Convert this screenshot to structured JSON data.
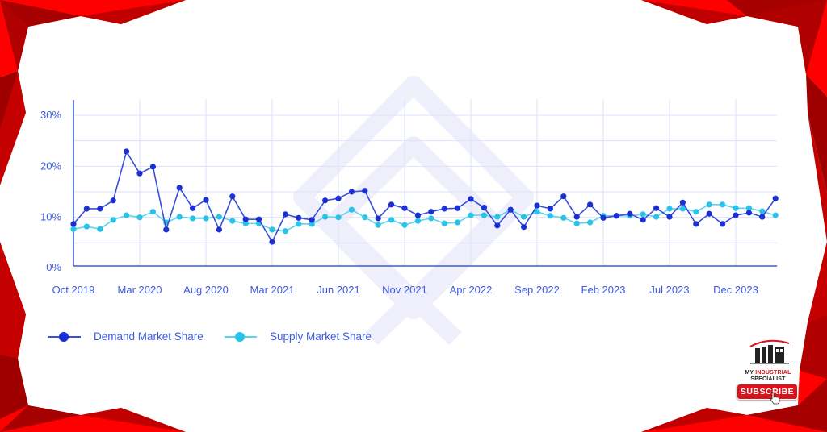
{
  "chart_data": {
    "type": "line",
    "title": "",
    "xlabel": "",
    "ylabel": "",
    "ylim": [
      0,
      30
    ],
    "y_ticks": [
      "0%",
      "10%",
      "20%",
      "30%"
    ],
    "x_tick_labels": [
      "Oct 2019",
      "Mar 2020",
      "Aug 2020",
      "Mar 2021",
      "Jun 2021",
      "Nov 2021",
      "Apr 2022",
      "Sep 2022",
      "Feb 2023",
      "Jul 2023",
      "Dec 2023"
    ],
    "x_tick_every": 5,
    "grid": true,
    "legend_position": "bottom-left",
    "series": [
      {
        "name": "Demand Market Share",
        "color": "#1a2fd6",
        "values": [
          8.7,
          11.7,
          11.7,
          13.3,
          22.9,
          18.6,
          19.9,
          7.6,
          15.8,
          11.8,
          13.4,
          7.6,
          14.1,
          9.6,
          9.6,
          5.2,
          10.6,
          9.9,
          9.5,
          13.3,
          13.7,
          15.0,
          15.2,
          9.8,
          12.5,
          11.8,
          10.4,
          11.1,
          11.7,
          11.8,
          13.6,
          11.9,
          8.4,
          11.5,
          8.1,
          12.3,
          11.7,
          14.1,
          10.1,
          12.5,
          9.9,
          10.3,
          10.7,
          9.5,
          11.8,
          10.1,
          12.9,
          8.7,
          10.7,
          8.7,
          10.4,
          10.9,
          10.1,
          13.7
        ]
      },
      {
        "name": "Supply Market Share",
        "color": "#27c3e8",
        "values": [
          7.7,
          8.2,
          7.7,
          9.5,
          10.4,
          10.0,
          11.1,
          9.0,
          10.1,
          9.8,
          9.8,
          10.1,
          9.3,
          8.8,
          8.8,
          7.6,
          7.3,
          8.7,
          8.7,
          10.1,
          10.0,
          11.5,
          10.0,
          8.5,
          9.5,
          8.5,
          9.3,
          9.8,
          8.8,
          9.0,
          10.4,
          10.4,
          10.1,
          11.5,
          10.1,
          11.1,
          10.3,
          9.9,
          8.8,
          9.0,
          10.3,
          10.3,
          10.3,
          10.6,
          10.1,
          11.7,
          11.7,
          11.1,
          12.5,
          12.5,
          11.8,
          11.8,
          11.2,
          10.4
        ]
      }
    ]
  },
  "legend": {
    "demand_label": "Demand Market Share",
    "supply_label": "Supply Market Share"
  },
  "colors": {
    "axis": "#3d5ae0",
    "grid": "#dbe3fb",
    "demand": "#1a2fd6",
    "demand_line": "#3a4fd8",
    "supply": "#27c3e8",
    "frame_red": "#ff0000",
    "frame_dark": "#a80000"
  },
  "brand": {
    "line1_a": "MY ",
    "line1_b": "INDUSTRIAL",
    "line2": "SPECIALIST",
    "subscribe_label": "SUBSCRIBE"
  }
}
